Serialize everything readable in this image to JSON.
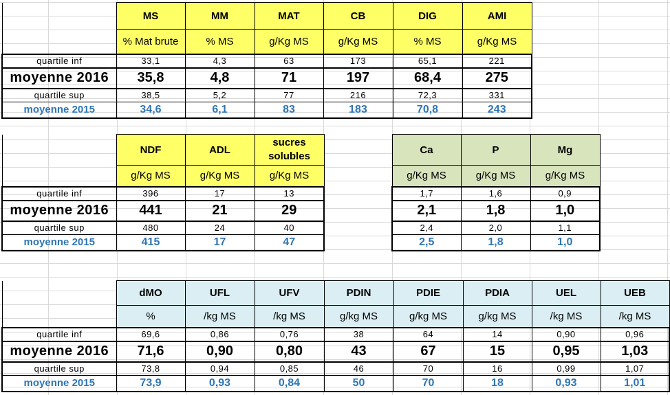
{
  "tables": {
    "t1": {
      "headers": [
        "MS",
        "MM",
        "MAT",
        "CB",
        "DIG",
        "AMI"
      ],
      "units": [
        "% Mat brute",
        "% MS",
        "g/Kg MS",
        "g/Kg MS",
        "% MS",
        "g/Kg MS"
      ],
      "rows": [
        {
          "label": "quartile inf",
          "values": [
            "33,1",
            "4,3",
            "63",
            "173",
            "65,1",
            "221"
          ]
        },
        {
          "label": "moyenne 2016",
          "values": [
            "35,8",
            "4,8",
            "71",
            "197",
            "68,4",
            "275"
          ]
        },
        {
          "label": "quartile sup",
          "values": [
            "38,5",
            "5,2",
            "77",
            "216",
            "72,3",
            "331"
          ]
        },
        {
          "label": "moyenne 2015",
          "values": [
            "34,6",
            "6,1",
            "83",
            "183",
            "70,8",
            "243"
          ]
        }
      ]
    },
    "t2": {
      "headers": [
        "NDF",
        "ADL",
        "sucres solubles"
      ],
      "units": [
        "g/Kg MS",
        "g/Kg MS",
        "g/Kg MS"
      ],
      "rows": [
        {
          "label": "quartile inf",
          "values": [
            "396",
            "17",
            "13"
          ]
        },
        {
          "label": "moyenne 2016",
          "values": [
            "441",
            "21",
            "29"
          ]
        },
        {
          "label": "quartile sup",
          "values": [
            "480",
            "24",
            "40"
          ]
        },
        {
          "label": "moyenne 2015",
          "values": [
            "415",
            "17",
            "47"
          ]
        }
      ]
    },
    "t3": {
      "headers": [
        "Ca",
        "P",
        "Mg"
      ],
      "units": [
        "g/Kg MS",
        "g/Kg MS",
        "g/Kg MS"
      ],
      "rows": [
        {
          "values": [
            "1,7",
            "1,6",
            "0,9"
          ]
        },
        {
          "values": [
            "2,1",
            "1,8",
            "1,0"
          ]
        },
        {
          "values": [
            "2,4",
            "2,0",
            "1,1"
          ]
        },
        {
          "values": [
            "2,5",
            "1,8",
            "1,0"
          ]
        }
      ]
    },
    "t4": {
      "headers": [
        "dMO",
        "UFL",
        "UFV",
        "PDIN",
        "PDIE",
        "PDIA",
        "UEL",
        "UEB"
      ],
      "units": [
        "%",
        "/kg MS",
        "/kg MS",
        "g/kg MS",
        "g/kg MS",
        "g/kg MS",
        "/kg MS",
        "/kg MS"
      ],
      "rows": [
        {
          "label": "quartile inf",
          "values": [
            "69,6",
            "0,86",
            "0,76",
            "38",
            "64",
            "14",
            "0,90",
            "0,96"
          ]
        },
        {
          "label": "moyenne 2016",
          "values": [
            "71,6",
            "0,90",
            "0,80",
            "43",
            "67",
            "15",
            "0,95",
            "1,03"
          ]
        },
        {
          "label": "quartile sup",
          "values": [
            "73,8",
            "0,94",
            "0,85",
            "46",
            "70",
            "16",
            "0,99",
            "1,07"
          ]
        },
        {
          "label": "moyenne 2015",
          "values": [
            "73,9",
            "0,93",
            "0,84",
            "50",
            "70",
            "18",
            "0,93",
            "1,01"
          ]
        }
      ]
    }
  },
  "colors": {
    "header_yellow": "#ffff66",
    "header_green": "#d8e4bc",
    "header_blue": "#daeef3",
    "moyenne_2015_text": "#2e75b6"
  }
}
